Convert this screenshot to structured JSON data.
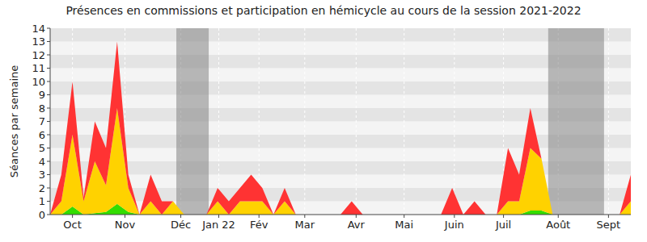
{
  "chart_data": {
    "type": "area",
    "title": "Présences en commissions et participation en hémicycle au cours de la session 2021-2022",
    "y_label": "Séances par semaine",
    "stacked": true,
    "grid": true,
    "x": [
      0,
      1,
      2,
      3,
      4,
      5,
      6,
      7,
      8,
      9,
      10,
      11,
      12,
      13,
      14,
      15,
      16,
      17,
      18,
      19,
      20,
      21,
      22,
      23,
      24,
      25,
      26,
      27,
      28,
      29,
      30,
      31,
      32,
      33,
      34,
      35,
      36,
      37,
      38,
      39,
      40,
      41,
      42,
      43,
      44,
      45,
      46,
      47,
      48,
      49,
      50,
      51,
      52
    ],
    "xlim": [
      0,
      52
    ],
    "xticks": [
      {
        "value": 2.0,
        "label": "Oct"
      },
      {
        "value": 6.7,
        "label": "Nov"
      },
      {
        "value": 11.7,
        "label": "Déc"
      },
      {
        "value": 15.1,
        "label": "Jan 22"
      },
      {
        "value": 18.7,
        "label": "Fév"
      },
      {
        "value": 22.8,
        "label": "Mar"
      },
      {
        "value": 27.4,
        "label": "Avr"
      },
      {
        "value": 31.7,
        "label": "Mai"
      },
      {
        "value": 36.2,
        "label": "Juin"
      },
      {
        "value": 40.6,
        "label": "Juil"
      },
      {
        "value": 45.5,
        "label": "Août"
      },
      {
        "value": 50.0,
        "label": "Sept"
      }
    ],
    "ylim": [
      0,
      14
    ],
    "yticks": [
      0,
      1,
      2,
      3,
      4,
      5,
      6,
      7,
      8,
      9,
      10,
      11,
      12,
      13,
      14
    ],
    "shaded_ranges": [
      [
        11.3,
        14.2
      ],
      [
        44.6,
        49.6
      ]
    ],
    "series": [
      {
        "color": "#33dd00",
        "values": [
          0,
          0,
          0.6,
          0,
          0.1,
          0.2,
          0.8,
          0.2,
          0,
          0,
          0,
          0,
          0,
          0,
          0,
          0,
          0,
          0,
          0,
          0,
          0,
          0,
          0,
          0,
          0,
          0,
          0,
          0,
          0,
          0,
          0,
          0,
          0,
          0,
          0,
          0,
          0,
          0,
          0,
          0,
          0,
          0,
          0,
          0.3,
          0.3,
          0,
          0,
          0,
          0,
          0,
          0,
          0,
          0
        ]
      },
      {
        "color": "#ffd200",
        "values": [
          0,
          1,
          5.4,
          1,
          3.9,
          2,
          7.2,
          1.8,
          0,
          1,
          0,
          1,
          0,
          0,
          0,
          1,
          0,
          1,
          1,
          1,
          0,
          1,
          0,
          0,
          0,
          0,
          0,
          0,
          0,
          0,
          0,
          0,
          0,
          0,
          0,
          0,
          0,
          0,
          0,
          0,
          0,
          1,
          1,
          4.7,
          3.9,
          0,
          0,
          0,
          0,
          0,
          0,
          0,
          1
        ]
      },
      {
        "color": "#ff3333",
        "values": [
          0,
          2,
          4,
          0.3,
          3,
          2.8,
          5,
          1,
          0,
          2,
          1,
          0,
          0,
          0,
          0,
          1,
          1,
          1,
          2,
          1,
          0,
          1,
          0,
          0,
          0,
          0,
          0,
          1,
          0,
          0,
          0,
          0,
          0,
          0,
          0,
          0,
          2,
          0,
          1,
          0,
          0,
          4,
          2,
          3,
          0,
          0,
          0,
          0,
          0,
          0,
          0,
          0,
          2
        ]
      }
    ]
  }
}
